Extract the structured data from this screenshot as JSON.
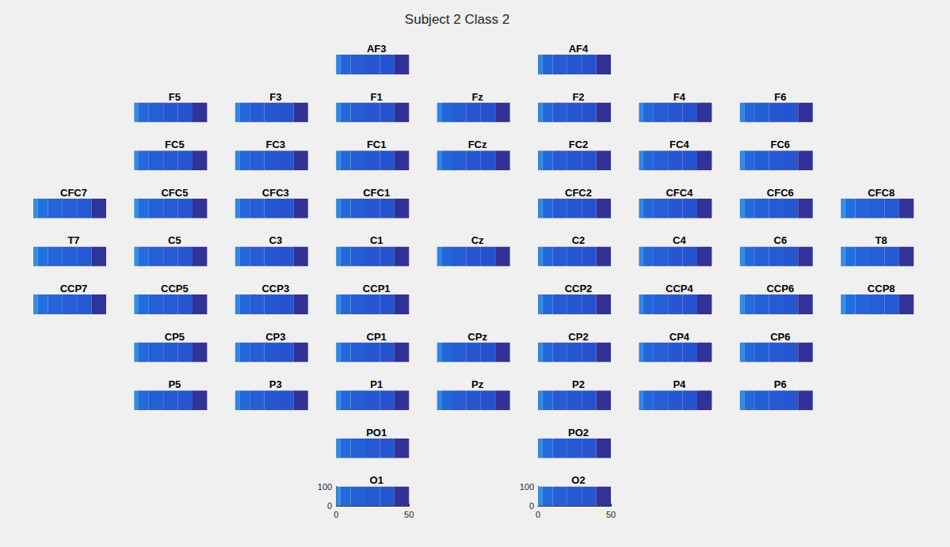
{
  "chart_data": {
    "type": "heatmap",
    "title": "Subject 2 Class 2",
    "xlim": [
      0,
      50
    ],
    "ylim": [
      0,
      104
    ],
    "xticks": [
      0,
      50
    ],
    "yticks": [
      0,
      100
    ],
    "x_edges": [
      0,
      3,
      10,
      20,
      30,
      40,
      50
    ],
    "y_edges": [
      0,
      104
    ],
    "zlim": [
      0,
      1
    ],
    "rows": [
      [
        null,
        null,
        null,
        {
          "title": "AF3",
          "values": [
            [
              0.82,
              0.58,
              0.5,
              0.46,
              0.43,
              0.08
            ]
          ],
          "tick_labels": false
        },
        null,
        {
          "title": "AF4",
          "values": [
            [
              0.82,
              0.58,
              0.5,
              0.46,
              0.43,
              0.08
            ]
          ],
          "tick_labels": false
        },
        null,
        null,
        null
      ],
      [
        null,
        {
          "title": "F5",
          "values": [
            [
              0.85,
              0.6,
              0.52,
              0.47,
              0.44,
              0.08
            ]
          ],
          "tick_labels": false
        },
        {
          "title": "F3",
          "values": [
            [
              0.84,
              0.6,
              0.51,
              0.46,
              0.43,
              0.08
            ]
          ],
          "tick_labels": false
        },
        {
          "title": "F1",
          "values": [
            [
              0.84,
              0.6,
              0.51,
              0.46,
              0.43,
              0.08
            ]
          ],
          "tick_labels": false
        },
        {
          "title": "Fz",
          "values": [
            [
              0.84,
              0.6,
              0.51,
              0.46,
              0.43,
              0.08
            ]
          ],
          "tick_labels": false
        },
        {
          "title": "F2",
          "values": [
            [
              0.84,
              0.6,
              0.51,
              0.46,
              0.43,
              0.08
            ]
          ],
          "tick_labels": false
        },
        {
          "title": "F4",
          "values": [
            [
              0.84,
              0.6,
              0.51,
              0.46,
              0.43,
              0.08
            ]
          ],
          "tick_labels": false
        },
        {
          "title": "F6",
          "values": [
            [
              0.85,
              0.6,
              0.52,
              0.47,
              0.44,
              0.08
            ]
          ],
          "tick_labels": false
        },
        null
      ],
      [
        null,
        {
          "title": "FC5",
          "values": [
            [
              0.86,
              0.62,
              0.53,
              0.48,
              0.45,
              0.08
            ]
          ],
          "tick_labels": false
        },
        {
          "title": "FC3",
          "values": [
            [
              0.85,
              0.6,
              0.52,
              0.47,
              0.44,
              0.08
            ]
          ],
          "tick_labels": false
        },
        {
          "title": "FC1",
          "values": [
            [
              0.84,
              0.6,
              0.51,
              0.46,
              0.43,
              0.08
            ]
          ],
          "tick_labels": false
        },
        {
          "title": "FCz",
          "values": [
            [
              0.84,
              0.6,
              0.51,
              0.46,
              0.43,
              0.08
            ]
          ],
          "tick_labels": false
        },
        {
          "title": "FC2",
          "values": [
            [
              0.84,
              0.6,
              0.51,
              0.46,
              0.43,
              0.08
            ]
          ],
          "tick_labels": false
        },
        {
          "title": "FC4",
          "values": [
            [
              0.85,
              0.6,
              0.52,
              0.47,
              0.44,
              0.08
            ]
          ],
          "tick_labels": false
        },
        {
          "title": "FC6",
          "values": [
            [
              0.86,
              0.62,
              0.53,
              0.48,
              0.45,
              0.08
            ]
          ],
          "tick_labels": false
        },
        null
      ],
      [
        {
          "title": "CFC7",
          "values": [
            [
              0.9,
              0.66,
              0.57,
              0.52,
              0.48,
              0.1
            ]
          ],
          "tick_labels": false
        },
        {
          "title": "CFC5",
          "values": [
            [
              0.88,
              0.64,
              0.55,
              0.5,
              0.46,
              0.09
            ]
          ],
          "tick_labels": false
        },
        {
          "title": "CFC3",
          "values": [
            [
              0.85,
              0.6,
              0.52,
              0.47,
              0.44,
              0.08
            ]
          ],
          "tick_labels": false
        },
        {
          "title": "CFC1",
          "values": [
            [
              0.84,
              0.6,
              0.51,
              0.46,
              0.43,
              0.08
            ]
          ],
          "tick_labels": false
        },
        null,
        {
          "title": "CFC2",
          "values": [
            [
              0.84,
              0.6,
              0.51,
              0.46,
              0.43,
              0.08
            ]
          ],
          "tick_labels": false
        },
        {
          "title": "CFC4",
          "values": [
            [
              0.85,
              0.6,
              0.52,
              0.47,
              0.44,
              0.08
            ]
          ],
          "tick_labels": false
        },
        {
          "title": "CFC6",
          "values": [
            [
              0.88,
              0.64,
              0.55,
              0.5,
              0.46,
              0.09
            ]
          ],
          "tick_labels": false
        },
        {
          "title": "CFC8",
          "values": [
            [
              0.9,
              0.66,
              0.57,
              0.52,
              0.48,
              0.1
            ]
          ],
          "tick_labels": false
        }
      ],
      [
        {
          "title": "T7",
          "values": [
            [
              0.9,
              0.67,
              0.58,
              0.53,
              0.49,
              0.1
            ]
          ],
          "tick_labels": false
        },
        {
          "title": "C5",
          "values": [
            [
              0.88,
              0.64,
              0.55,
              0.5,
              0.46,
              0.09
            ]
          ],
          "tick_labels": false
        },
        {
          "title": "C3",
          "values": [
            [
              0.85,
              0.61,
              0.52,
              0.47,
              0.44,
              0.08
            ]
          ],
          "tick_labels": false
        },
        {
          "title": "C1",
          "values": [
            [
              0.84,
              0.6,
              0.51,
              0.46,
              0.43,
              0.08
            ]
          ],
          "tick_labels": false
        },
        {
          "title": "Cz",
          "values": [
            [
              0.84,
              0.6,
              0.51,
              0.46,
              0.43,
              0.08
            ]
          ],
          "tick_labels": false
        },
        {
          "title": "C2",
          "values": [
            [
              0.84,
              0.6,
              0.51,
              0.46,
              0.43,
              0.08
            ]
          ],
          "tick_labels": false
        },
        {
          "title": "C4",
          "values": [
            [
              0.85,
              0.61,
              0.52,
              0.47,
              0.44,
              0.08
            ]
          ],
          "tick_labels": false
        },
        {
          "title": "C6",
          "values": [
            [
              0.88,
              0.64,
              0.55,
              0.5,
              0.46,
              0.09
            ]
          ],
          "tick_labels": false
        },
        {
          "title": "T8",
          "values": [
            [
              0.9,
              0.67,
              0.58,
              0.53,
              0.49,
              0.1
            ]
          ],
          "tick_labels": false
        }
      ],
      [
        {
          "title": "CCP7",
          "values": [
            [
              0.9,
              0.66,
              0.57,
              0.52,
              0.48,
              0.1
            ]
          ],
          "tick_labels": false
        },
        {
          "title": "CCP5",
          "values": [
            [
              0.88,
              0.64,
              0.55,
              0.5,
              0.46,
              0.09
            ]
          ],
          "tick_labels": false
        },
        {
          "title": "CCP3",
          "values": [
            [
              0.85,
              0.6,
              0.52,
              0.47,
              0.44,
              0.08
            ]
          ],
          "tick_labels": false
        },
        {
          "title": "CCP1",
          "values": [
            [
              0.84,
              0.6,
              0.51,
              0.46,
              0.43,
              0.08
            ]
          ],
          "tick_labels": false
        },
        null,
        {
          "title": "CCP2",
          "values": [
            [
              0.84,
              0.6,
              0.51,
              0.46,
              0.43,
              0.08
            ]
          ],
          "tick_labels": false
        },
        {
          "title": "CCP4",
          "values": [
            [
              0.85,
              0.6,
              0.52,
              0.47,
              0.44,
              0.08
            ]
          ],
          "tick_labels": false
        },
        {
          "title": "CCP6",
          "values": [
            [
              0.88,
              0.64,
              0.55,
              0.5,
              0.46,
              0.09
            ]
          ],
          "tick_labels": false
        },
        {
          "title": "CCP8",
          "values": [
            [
              0.9,
              0.66,
              0.57,
              0.52,
              0.48,
              0.1
            ]
          ],
          "tick_labels": false
        }
      ],
      [
        null,
        {
          "title": "CP5",
          "values": [
            [
              0.86,
              0.62,
              0.53,
              0.48,
              0.45,
              0.08
            ]
          ],
          "tick_labels": false
        },
        {
          "title": "CP3",
          "values": [
            [
              0.85,
              0.6,
              0.52,
              0.47,
              0.44,
              0.08
            ]
          ],
          "tick_labels": false
        },
        {
          "title": "CP1",
          "values": [
            [
              0.84,
              0.6,
              0.51,
              0.46,
              0.43,
              0.08
            ]
          ],
          "tick_labels": false
        },
        {
          "title": "CPz",
          "values": [
            [
              0.84,
              0.6,
              0.51,
              0.46,
              0.43,
              0.08
            ]
          ],
          "tick_labels": false
        },
        {
          "title": "CP2",
          "values": [
            [
              0.84,
              0.6,
              0.51,
              0.46,
              0.43,
              0.08
            ]
          ],
          "tick_labels": false
        },
        {
          "title": "CP4",
          "values": [
            [
              0.85,
              0.6,
              0.52,
              0.47,
              0.44,
              0.08
            ]
          ],
          "tick_labels": false
        },
        {
          "title": "CP6",
          "values": [
            [
              0.86,
              0.62,
              0.53,
              0.48,
              0.45,
              0.08
            ]
          ],
          "tick_labels": false
        },
        null
      ],
      [
        null,
        {
          "title": "P5",
          "values": [
            [
              0.86,
              0.62,
              0.53,
              0.48,
              0.45,
              0.08
            ]
          ],
          "tick_labels": false
        },
        {
          "title": "P3",
          "values": [
            [
              0.85,
              0.6,
              0.52,
              0.47,
              0.44,
              0.08
            ]
          ],
          "tick_labels": false
        },
        {
          "title": "P1",
          "values": [
            [
              0.84,
              0.6,
              0.51,
              0.46,
              0.43,
              0.08
            ]
          ],
          "tick_labels": false
        },
        {
          "title": "Pz",
          "values": [
            [
              0.84,
              0.6,
              0.51,
              0.46,
              0.43,
              0.08
            ]
          ],
          "tick_labels": false
        },
        {
          "title": "P2",
          "values": [
            [
              0.84,
              0.6,
              0.51,
              0.46,
              0.43,
              0.08
            ]
          ],
          "tick_labels": false
        },
        {
          "title": "P4",
          "values": [
            [
              0.85,
              0.6,
              0.52,
              0.47,
              0.44,
              0.08
            ]
          ],
          "tick_labels": false
        },
        {
          "title": "P6",
          "values": [
            [
              0.86,
              0.62,
              0.53,
              0.48,
              0.45,
              0.08
            ]
          ],
          "tick_labels": false
        },
        null
      ],
      [
        null,
        null,
        null,
        {
          "title": "PO1",
          "values": [
            [
              0.86,
              0.62,
              0.53,
              0.48,
              0.45,
              0.08
            ]
          ],
          "tick_labels": false
        },
        null,
        {
          "title": "PO2",
          "values": [
            [
              0.86,
              0.62,
              0.53,
              0.48,
              0.45,
              0.08
            ]
          ],
          "tick_labels": false
        },
        null,
        null,
        null
      ],
      [
        null,
        null,
        null,
        {
          "title": "O1",
          "values": [
            [
              0.88,
              0.63,
              0.54,
              0.49,
              0.46,
              0.09
            ]
          ],
          "tick_labels": true
        },
        null,
        {
          "title": "O2",
          "values": [
            [
              0.88,
              0.63,
              0.54,
              0.49,
              0.46,
              0.09
            ]
          ],
          "tick_labels": true
        },
        null,
        null,
        null
      ]
    ]
  }
}
